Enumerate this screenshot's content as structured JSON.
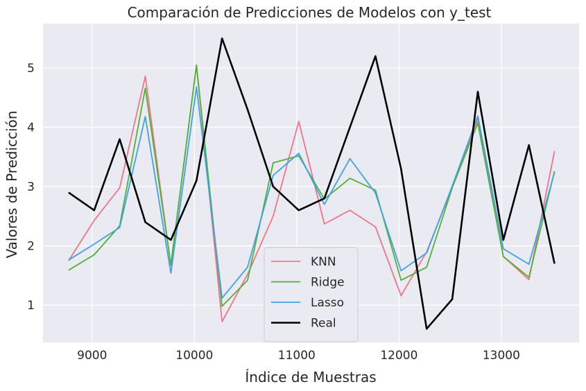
{
  "chart_data": {
    "type": "line",
    "title": "Comparación de Predicciones de Modelos con y_test",
    "xlabel": "Índice de Muestras",
    "ylabel": "Valores de Predicción",
    "xlim": [
      8520,
      13760
    ],
    "ylim": [
      0.37,
      5.75
    ],
    "xticks": [
      9000,
      10000,
      11000,
      12000,
      13000
    ],
    "yticks": [
      1,
      2,
      3,
      4,
      5
    ],
    "grid": true,
    "legend_position": "lower-center",
    "x": [
      8770,
      9020,
      9270,
      9520,
      9770,
      10020,
      10270,
      10520,
      10770,
      11020,
      11270,
      11520,
      11770,
      12020,
      12270,
      12520,
      12770,
      13020,
      13270,
      13520
    ],
    "series": [
      {
        "name": "KNN",
        "color": "#f07584",
        "width": 1.8,
        "values": [
          1.75,
          2.43,
          2.98,
          4.86,
          1.67,
          5.05,
          0.72,
          1.52,
          2.5,
          4.1,
          2.37,
          2.6,
          2.32,
          1.16,
          1.9,
          2.98,
          4.14,
          1.82,
          1.43,
          3.6
        ]
      },
      {
        "name": "Ridge",
        "color": "#4fb136",
        "width": 1.8,
        "values": [
          1.59,
          1.85,
          2.34,
          4.66,
          1.68,
          5.05,
          0.98,
          1.42,
          3.4,
          3.52,
          2.79,
          3.14,
          2.94,
          1.42,
          1.64,
          2.98,
          4.07,
          1.82,
          1.47,
          3.26
        ]
      },
      {
        "name": "Lasso",
        "color": "#3ea1e3",
        "width": 1.8,
        "values": [
          1.76,
          2.03,
          2.31,
          4.18,
          1.54,
          4.68,
          1.12,
          1.64,
          3.19,
          3.56,
          2.7,
          3.47,
          2.89,
          1.58,
          1.88,
          3.01,
          4.19,
          1.95,
          1.69,
          3.24
        ]
      },
      {
        "name": "Real",
        "color": "#000000",
        "width": 2.6,
        "values": [
          2.9,
          2.6,
          3.8,
          2.4,
          2.1,
          3.1,
          5.5,
          4.3,
          3.0,
          2.6,
          2.8,
          4.0,
          5.2,
          3.3,
          0.6,
          1.1,
          4.6,
          2.1,
          3.7,
          1.7
        ]
      }
    ]
  },
  "colors": {
    "plot_background": "#eaeaf2",
    "grid": "#ffffff",
    "text": "#262626",
    "legend_border": "#cccccc",
    "legend_background": "#eaeaf2"
  }
}
